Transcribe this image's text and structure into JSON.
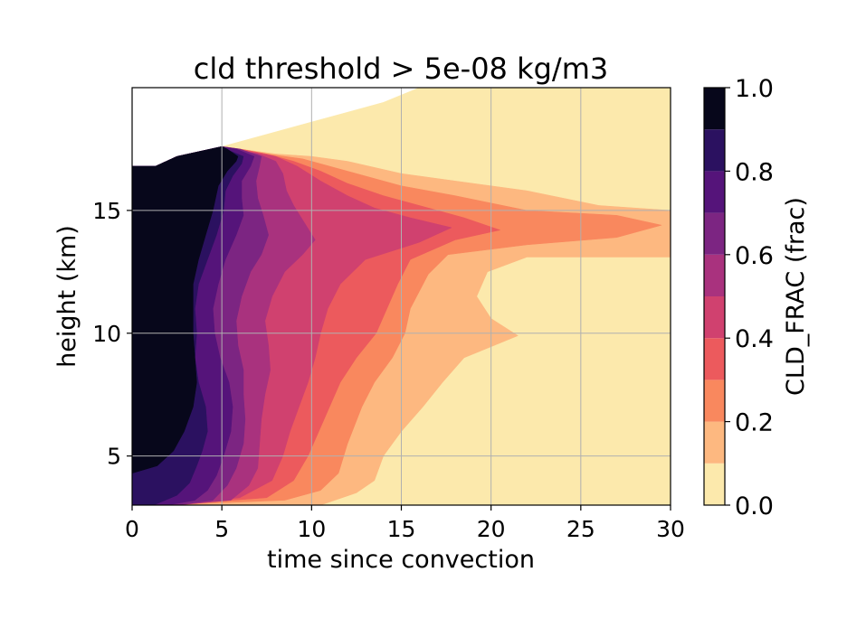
{
  "chart_data": {
    "type": "contourf",
    "title": "cld threshold > 5e-08 kg/m3",
    "xlabel": "time since convection",
    "ylabel": "height (km)",
    "xlim": [
      0,
      30
    ],
    "ylim": [
      3,
      20
    ],
    "xticks": [
      "0",
      "5",
      "10",
      "15",
      "20",
      "25",
      "30"
    ],
    "yticks": [
      "5",
      "10",
      "15"
    ],
    "grid": true,
    "colorbar": {
      "label": "CLD_FRAC (frac)",
      "levels": [
        0.0,
        0.1,
        0.2,
        0.3,
        0.4,
        0.5,
        0.6,
        0.7,
        0.8,
        0.9,
        1.0
      ],
      "ticks": [
        "0.0",
        "0.2",
        "0.4",
        "0.6",
        "0.8",
        "1.0"
      ],
      "colormap": "magma_r",
      "colors": [
        "#fce9ac",
        "#fdb880",
        "#f9885e",
        "#ec5a5d",
        "#d0416f",
        "#a9327e",
        "#7c2582",
        "#55147a",
        "#2b1160",
        "#07071b"
      ]
    },
    "contour_bounds": {
      "description_units": "x in time units, y in km; each level gives the boundary time x(height) beyond which fraction drops below the level",
      "heights": [
        3.2,
        3.5,
        4,
        5,
        6,
        7,
        8,
        9,
        10,
        11,
        12,
        13,
        14,
        14.5,
        15,
        15.5,
        16,
        16.5,
        17,
        17.4,
        17.6,
        18,
        18.5,
        19,
        19.5,
        20
      ],
      "levels": [
        {
          "level": 0.1,
          "x": [
            30,
            30,
            30,
            30,
            30,
            30,
            30,
            30,
            30,
            30,
            30,
            30,
            30,
            30,
            30,
            30,
            30,
            30,
            30,
            30,
            30,
            30,
            30,
            30,
            30,
            30
          ]
        },
        {
          "level": 0.2,
          "x": [
            10.5,
            12.5,
            13.5,
            14,
            15,
            16,
            17,
            18.5,
            21.5,
            19,
            19,
            21,
            30,
            30,
            30,
            25,
            21,
            17,
            14,
            10.5,
            8,
            6,
            5.5,
            5.2,
            5,
            5
          ]
        }
      ]
    }
  }
}
